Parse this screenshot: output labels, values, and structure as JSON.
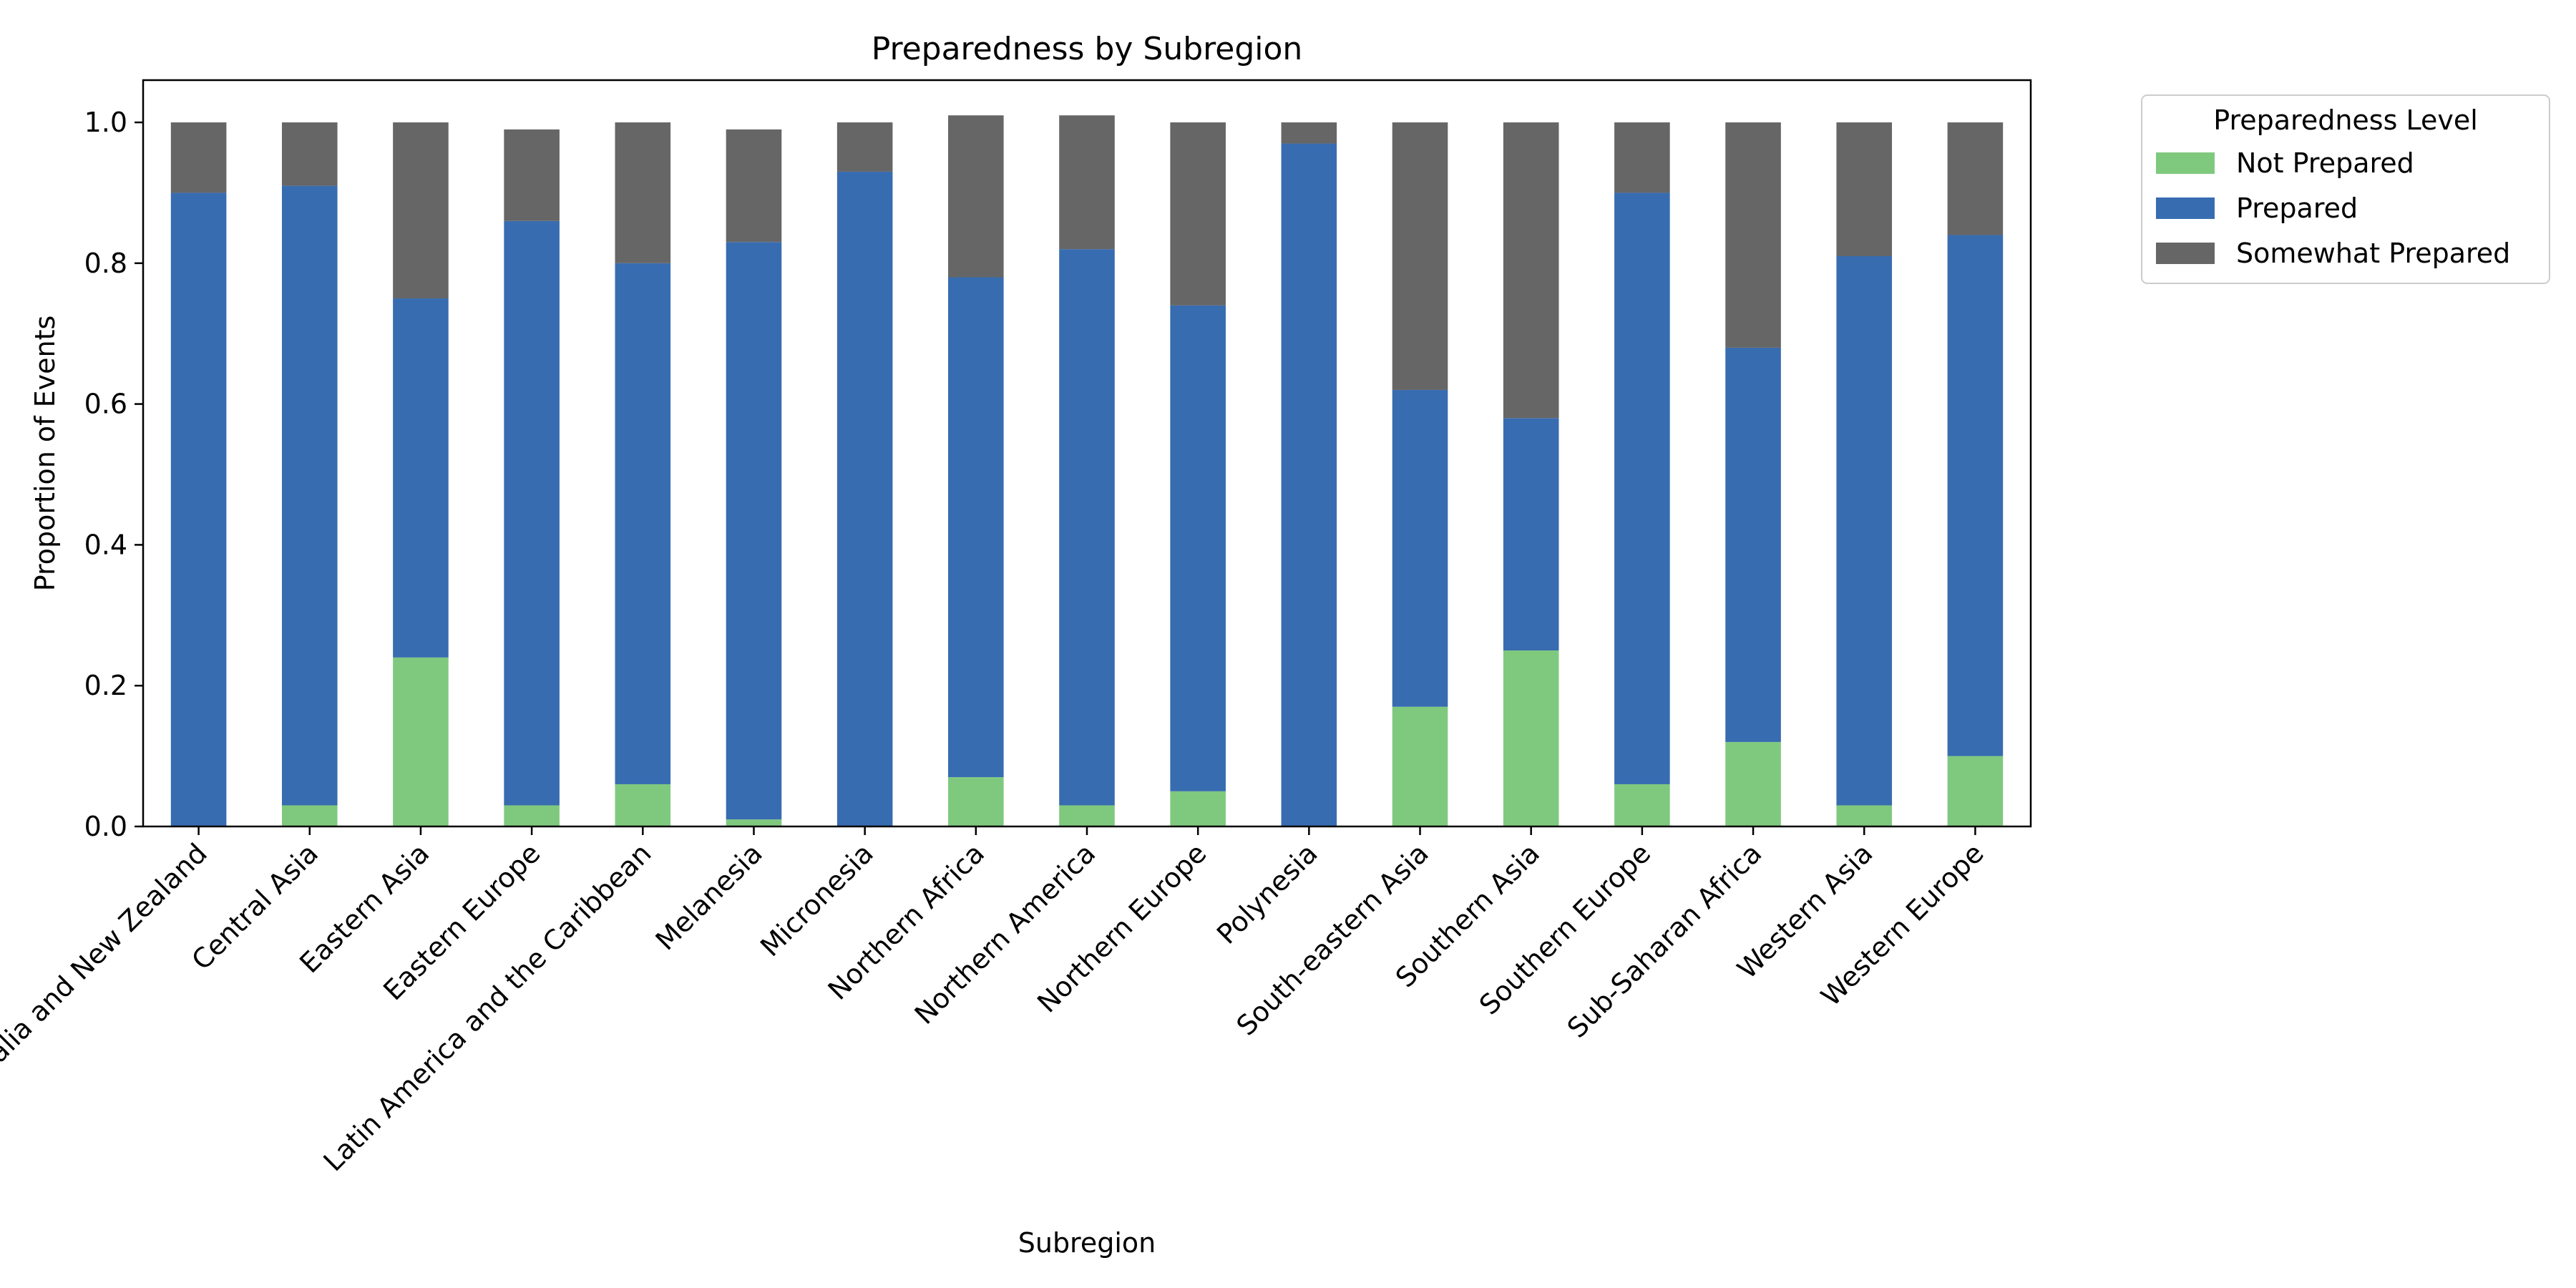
{
  "chart_data": {
    "type": "bar",
    "stacked": true,
    "title": "Preparedness by Subregion",
    "xlabel": "Subregion",
    "ylabel": "Proportion of Events",
    "ylim": [
      0,
      1.06
    ],
    "yticks": [
      "0.0",
      "0.2",
      "0.4",
      "0.6",
      "0.8",
      "1.0"
    ],
    "grid": false,
    "legend": {
      "title": "Preparedness Level",
      "placement": "outside-top-right"
    },
    "categories": [
      "Australia and New Zealand",
      "Central Asia",
      "Eastern Asia",
      "Eastern Europe",
      "Latin America and the Caribbean",
      "Melanesia",
      "Micronesia",
      "Northern Africa",
      "Northern America",
      "Northern Europe",
      "Polynesia",
      "South-eastern Asia",
      "Southern Asia",
      "Southern Europe",
      "Sub-Saharan Africa",
      "Western Asia",
      "Western Europe"
    ],
    "series": [
      {
        "name": "Not Prepared",
        "color": "#7fc97f",
        "values": [
          0.0,
          0.03,
          0.24,
          0.03,
          0.06,
          0.01,
          0.0,
          0.07,
          0.03,
          0.05,
          0.0,
          0.17,
          0.25,
          0.06,
          0.12,
          0.03,
          0.1
        ]
      },
      {
        "name": "Prepared",
        "color": "#386cb0",
        "values": [
          0.9,
          0.88,
          0.51,
          0.83,
          0.74,
          0.82,
          0.93,
          0.71,
          0.79,
          0.69,
          0.97,
          0.45,
          0.33,
          0.84,
          0.56,
          0.78,
          0.74
        ]
      },
      {
        "name": "Somewhat Prepared",
        "color": "#666666",
        "values": [
          0.1,
          0.09,
          0.25,
          0.13,
          0.2,
          0.16,
          0.07,
          0.23,
          0.19,
          0.26,
          0.03,
          0.38,
          0.42,
          0.1,
          0.32,
          0.19,
          0.16
        ]
      }
    ]
  }
}
